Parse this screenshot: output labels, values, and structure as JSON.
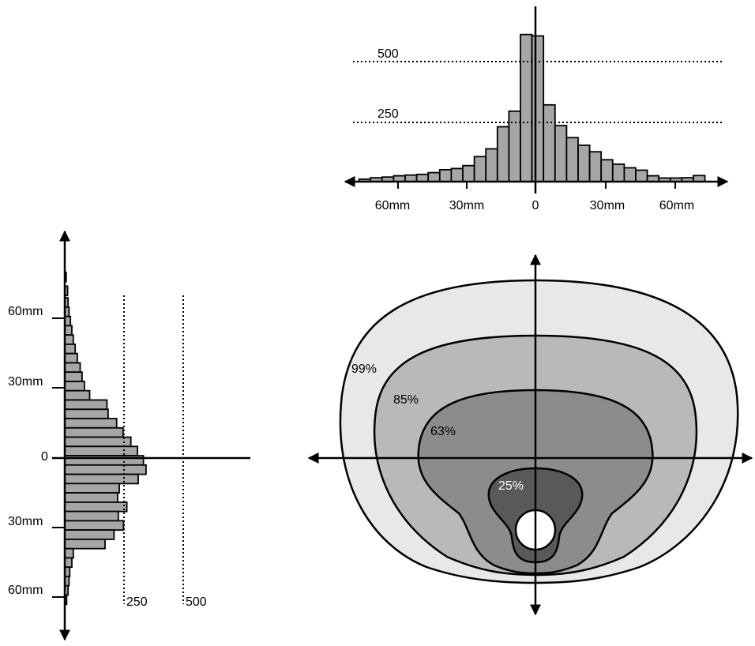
{
  "chart_data": [
    {
      "type": "bar",
      "orientation": "vertical",
      "x_tick_labels": [
        "60mm",
        "30mm",
        "0",
        "30mm",
        "60mm"
      ],
      "reference_lines": [
        {
          "value": 500,
          "label": "500"
        },
        {
          "value": 250,
          "label": "250"
        }
      ],
      "x": [
        -74,
        -69,
        -64,
        -59,
        -54,
        -49,
        -44,
        -39,
        -34,
        -29,
        -24,
        -19,
        -14,
        -9,
        -4,
        1,
        6,
        11,
        16,
        21,
        26,
        31,
        36,
        41,
        46,
        51,
        56,
        61,
        66,
        71
      ],
      "values": [
        10,
        16,
        19,
        24,
        27,
        30,
        37,
        49,
        54,
        66,
        103,
        135,
        226,
        290,
        606,
        600,
        316,
        231,
        181,
        150,
        123,
        90,
        72,
        57,
        47,
        24,
        15,
        15,
        16,
        25
      ],
      "ylim": [
        0,
        700
      ],
      "fill": "#a6a6a6"
    },
    {
      "type": "bar",
      "orientation": "horizontal",
      "y_tick_labels": [
        "60mm",
        "30mm",
        "0",
        "30mm",
        "60mm"
      ],
      "reference_lines": [
        {
          "value": 250,
          "label": "250"
        },
        {
          "value": 500,
          "label": "500"
        }
      ],
      "x": [
        78,
        72,
        67,
        63,
        59,
        55,
        51,
        47,
        43,
        39,
        35,
        31,
        27,
        23,
        19,
        15,
        11,
        7,
        3,
        -1,
        -5,
        -9,
        -13,
        -17,
        -21,
        -25,
        -29,
        -33,
        -37,
        -41,
        -45,
        -49,
        -53,
        -57,
        -61
      ],
      "values": [
        6,
        12,
        14,
        18,
        24,
        30,
        36,
        44,
        53,
        65,
        73,
        83,
        105,
        178,
        183,
        219,
        246,
        279,
        307,
        332,
        343,
        310,
        230,
        223,
        262,
        226,
        248,
        208,
        170,
        36,
        30,
        21,
        18,
        14,
        8
      ],
      "ylim": [
        -60,
        90
      ],
      "fill": "#a6a6a6"
    },
    {
      "type": "contour",
      "contour_labels": [
        "99%",
        "85%",
        "63%",
        "25%"
      ],
      "fills": [
        "#e8e8e8",
        "#b9b9b9",
        "#8c8c8c",
        "#595959"
      ]
    }
  ]
}
